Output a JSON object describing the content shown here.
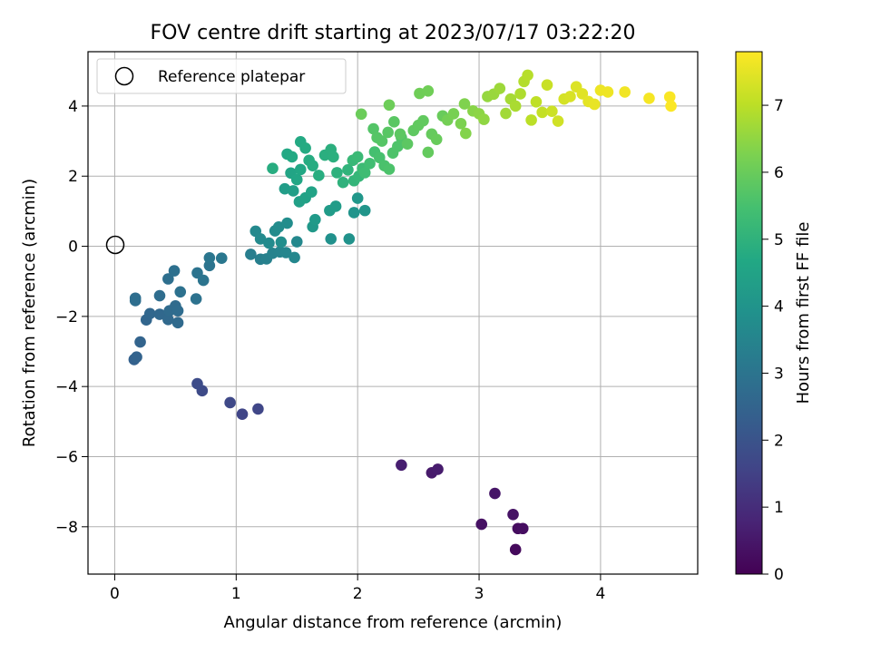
{
  "chart_data": {
    "type": "scatter",
    "title": "FOV centre drift starting at 2023/07/17 03:22:20",
    "xlabel": "Angular distance from reference (arcmin)",
    "ylabel": "Rotation from reference (arcmin)",
    "xlim": [
      -0.22,
      4.8
    ],
    "ylim": [
      -9.35,
      5.55
    ],
    "xticks": [
      0,
      1,
      2,
      3,
      4
    ],
    "yticks": [
      -8,
      -6,
      -4,
      -2,
      0,
      2,
      4
    ],
    "grid": true,
    "legend": {
      "placement": "upper-left",
      "entries": [
        "Reference platepar"
      ]
    },
    "reference_point": {
      "x": 0,
      "y": 0,
      "label": "Reference platepar"
    },
    "colorbar": {
      "label": "Hours from first FF file",
      "min": 0,
      "max": 7.8,
      "ticks": [
        0,
        1,
        2,
        3,
        4,
        5,
        6,
        7
      ],
      "colormap": "viridis"
    },
    "points": [
      {
        "x": 3.3,
        "y": -8.65,
        "c": 0.2
      },
      {
        "x": 3.32,
        "y": -8.05,
        "c": 0.25
      },
      {
        "x": 3.36,
        "y": -8.05,
        "c": 0.3
      },
      {
        "x": 3.02,
        "y": -7.93,
        "c": 0.35
      },
      {
        "x": 3.28,
        "y": -7.65,
        "c": 0.4
      },
      {
        "x": 3.13,
        "y": -7.05,
        "c": 0.45
      },
      {
        "x": 2.61,
        "y": -6.46,
        "c": 0.55
      },
      {
        "x": 2.66,
        "y": -6.36,
        "c": 0.6
      },
      {
        "x": 2.36,
        "y": -6.24,
        "c": 0.65
      },
      {
        "x": 1.05,
        "y": -4.79,
        "c": 1.6
      },
      {
        "x": 1.18,
        "y": -4.64,
        "c": 1.65
      },
      {
        "x": 0.95,
        "y": -4.46,
        "c": 1.7
      },
      {
        "x": 0.72,
        "y": -4.12,
        "c": 1.75
      },
      {
        "x": 0.68,
        "y": -3.92,
        "c": 1.8
      },
      {
        "x": 0.16,
        "y": -3.23,
        "c": 2.4
      },
      {
        "x": 0.18,
        "y": -3.16,
        "c": 2.45
      },
      {
        "x": 0.21,
        "y": -2.73,
        "c": 2.5
      },
      {
        "x": 0.26,
        "y": -2.1,
        "c": 2.55
      },
      {
        "x": 0.29,
        "y": -1.92,
        "c": 2.6
      },
      {
        "x": 0.37,
        "y": -1.94,
        "c": 2.62
      },
      {
        "x": 0.44,
        "y": -2.09,
        "c": 2.65
      },
      {
        "x": 0.52,
        "y": -2.18,
        "c": 2.68
      },
      {
        "x": 0.45,
        "y": -1.84,
        "c": 2.7
      },
      {
        "x": 0.5,
        "y": -1.7,
        "c": 2.72
      },
      {
        "x": 0.52,
        "y": -1.84,
        "c": 2.75
      },
      {
        "x": 0.37,
        "y": -1.41,
        "c": 2.78
      },
      {
        "x": 0.17,
        "y": -1.48,
        "c": 2.8
      },
      {
        "x": 0.17,
        "y": -1.55,
        "c": 2.82
      },
      {
        "x": 0.44,
        "y": -0.93,
        "c": 2.85
      },
      {
        "x": 0.49,
        "y": -0.7,
        "c": 2.88
      },
      {
        "x": 0.54,
        "y": -1.3,
        "c": 2.9
      },
      {
        "x": 0.67,
        "y": -1.5,
        "c": 2.92
      },
      {
        "x": 0.68,
        "y": -0.76,
        "c": 2.95
      },
      {
        "x": 0.73,
        "y": -0.97,
        "c": 2.98
      },
      {
        "x": 0.78,
        "y": -0.55,
        "c": 3.0
      },
      {
        "x": 0.78,
        "y": -0.33,
        "c": 3.05
      },
      {
        "x": 0.88,
        "y": -0.34,
        "c": 3.1
      },
      {
        "x": 1.12,
        "y": -0.23,
        "c": 3.3
      },
      {
        "x": 1.2,
        "y": -0.37,
        "c": 3.35
      },
      {
        "x": 1.25,
        "y": -0.36,
        "c": 3.4
      },
      {
        "x": 1.3,
        "y": -0.2,
        "c": 3.45
      },
      {
        "x": 1.36,
        "y": -0.16,
        "c": 3.5
      },
      {
        "x": 1.41,
        "y": -0.18,
        "c": 3.55
      },
      {
        "x": 1.48,
        "y": -0.32,
        "c": 3.6
      },
      {
        "x": 1.5,
        "y": 0.13,
        "c": 3.62
      },
      {
        "x": 1.16,
        "y": 0.43,
        "c": 3.65
      },
      {
        "x": 1.2,
        "y": 0.21,
        "c": 3.68
      },
      {
        "x": 1.27,
        "y": 0.09,
        "c": 3.7
      },
      {
        "x": 1.32,
        "y": 0.44,
        "c": 3.72
      },
      {
        "x": 1.35,
        "y": 0.55,
        "c": 3.75
      },
      {
        "x": 1.42,
        "y": 0.66,
        "c": 3.78
      },
      {
        "x": 1.37,
        "y": 0.12,
        "c": 3.8
      },
      {
        "x": 1.78,
        "y": 0.21,
        "c": 3.9
      },
      {
        "x": 1.93,
        "y": 0.21,
        "c": 3.95
      },
      {
        "x": 1.97,
        "y": 0.96,
        "c": 4.0
      },
      {
        "x": 2.06,
        "y": 1.02,
        "c": 4.05
      },
      {
        "x": 2.0,
        "y": 1.37,
        "c": 4.1
      },
      {
        "x": 1.63,
        "y": 0.56,
        "c": 4.15
      },
      {
        "x": 1.65,
        "y": 0.76,
        "c": 4.2
      },
      {
        "x": 1.77,
        "y": 1.02,
        "c": 4.25
      },
      {
        "x": 1.82,
        "y": 1.14,
        "c": 4.28
      },
      {
        "x": 1.4,
        "y": 1.64,
        "c": 4.3
      },
      {
        "x": 1.47,
        "y": 1.58,
        "c": 4.35
      },
      {
        "x": 1.52,
        "y": 1.27,
        "c": 4.4
      },
      {
        "x": 1.57,
        "y": 1.38,
        "c": 4.45
      },
      {
        "x": 1.62,
        "y": 1.55,
        "c": 4.5
      },
      {
        "x": 1.45,
        "y": 2.09,
        "c": 4.55
      },
      {
        "x": 1.5,
        "y": 1.9,
        "c": 4.6
      },
      {
        "x": 1.53,
        "y": 2.19,
        "c": 4.65
      },
      {
        "x": 1.42,
        "y": 2.63,
        "c": 4.68
      },
      {
        "x": 1.46,
        "y": 2.55,
        "c": 4.7
      },
      {
        "x": 1.53,
        "y": 2.98,
        "c": 4.72
      },
      {
        "x": 1.57,
        "y": 2.8,
        "c": 4.75
      },
      {
        "x": 1.6,
        "y": 2.45,
        "c": 4.78
      },
      {
        "x": 1.63,
        "y": 2.3,
        "c": 4.8
      },
      {
        "x": 1.3,
        "y": 2.22,
        "c": 4.82
      },
      {
        "x": 1.68,
        "y": 2.02,
        "c": 4.85
      },
      {
        "x": 1.73,
        "y": 2.6,
        "c": 4.88
      },
      {
        "x": 1.78,
        "y": 2.76,
        "c": 4.9
      },
      {
        "x": 1.8,
        "y": 2.55,
        "c": 4.92
      },
      {
        "x": 1.83,
        "y": 2.1,
        "c": 4.95
      },
      {
        "x": 1.88,
        "y": 1.82,
        "c": 5.0
      },
      {
        "x": 1.92,
        "y": 2.18,
        "c": 5.05
      },
      {
        "x": 1.97,
        "y": 1.87,
        "c": 5.1
      },
      {
        "x": 2.01,
        "y": 2.0,
        "c": 5.15
      },
      {
        "x": 1.96,
        "y": 2.45,
        "c": 5.2
      },
      {
        "x": 2.0,
        "y": 2.55,
        "c": 5.25
      },
      {
        "x": 2.04,
        "y": 2.22,
        "c": 5.3
      },
      {
        "x": 2.06,
        "y": 2.1,
        "c": 5.35
      },
      {
        "x": 2.1,
        "y": 2.36,
        "c": 5.4
      },
      {
        "x": 2.14,
        "y": 2.69,
        "c": 5.45
      },
      {
        "x": 2.18,
        "y": 2.53,
        "c": 5.5
      },
      {
        "x": 2.22,
        "y": 2.3,
        "c": 5.55
      },
      {
        "x": 2.26,
        "y": 2.2,
        "c": 5.58
      },
      {
        "x": 2.29,
        "y": 2.66,
        "c": 5.6
      },
      {
        "x": 2.33,
        "y": 2.85,
        "c": 5.62
      },
      {
        "x": 2.36,
        "y": 3.1,
        "c": 5.65
      },
      {
        "x": 2.13,
        "y": 3.35,
        "c": 5.68
      },
      {
        "x": 2.16,
        "y": 3.1,
        "c": 5.7
      },
      {
        "x": 2.2,
        "y": 3.0,
        "c": 5.72
      },
      {
        "x": 2.25,
        "y": 3.25,
        "c": 5.75
      },
      {
        "x": 2.3,
        "y": 3.55,
        "c": 5.78
      },
      {
        "x": 2.35,
        "y": 3.2,
        "c": 5.8
      },
      {
        "x": 2.41,
        "y": 2.92,
        "c": 5.82
      },
      {
        "x": 2.46,
        "y": 3.3,
        "c": 5.85
      },
      {
        "x": 2.5,
        "y": 3.45,
        "c": 5.88
      },
      {
        "x": 2.54,
        "y": 3.58,
        "c": 5.9
      },
      {
        "x": 2.58,
        "y": 2.68,
        "c": 5.92
      },
      {
        "x": 2.61,
        "y": 3.2,
        "c": 5.95
      },
      {
        "x": 2.65,
        "y": 3.05,
        "c": 5.98
      },
      {
        "x": 2.7,
        "y": 3.72,
        "c": 6.0
      },
      {
        "x": 2.03,
        "y": 3.77,
        "c": 6.02
      },
      {
        "x": 2.26,
        "y": 4.03,
        "c": 6.05
      },
      {
        "x": 2.51,
        "y": 4.36,
        "c": 6.08
      },
      {
        "x": 2.58,
        "y": 4.43,
        "c": 6.1
      },
      {
        "x": 2.74,
        "y": 3.6,
        "c": 6.15
      },
      {
        "x": 2.79,
        "y": 3.78,
        "c": 6.2
      },
      {
        "x": 2.85,
        "y": 3.5,
        "c": 6.25
      },
      {
        "x": 2.88,
        "y": 4.06,
        "c": 6.3
      },
      {
        "x": 2.89,
        "y": 3.22,
        "c": 6.35
      },
      {
        "x": 2.95,
        "y": 3.86,
        "c": 6.4
      },
      {
        "x": 3.0,
        "y": 3.78,
        "c": 6.45
      },
      {
        "x": 3.04,
        "y": 3.62,
        "c": 6.5
      },
      {
        "x": 3.07,
        "y": 4.27,
        "c": 6.55
      },
      {
        "x": 3.12,
        "y": 4.34,
        "c": 6.6
      },
      {
        "x": 3.17,
        "y": 4.5,
        "c": 6.65
      },
      {
        "x": 3.22,
        "y": 3.79,
        "c": 6.7
      },
      {
        "x": 3.26,
        "y": 4.2,
        "c": 6.75
      },
      {
        "x": 3.3,
        "y": 4.0,
        "c": 6.8
      },
      {
        "x": 3.34,
        "y": 4.35,
        "c": 6.85
      },
      {
        "x": 3.37,
        "y": 4.7,
        "c": 6.9
      },
      {
        "x": 3.4,
        "y": 4.88,
        "c": 6.95
      },
      {
        "x": 3.43,
        "y": 3.6,
        "c": 7.0
      },
      {
        "x": 3.47,
        "y": 4.12,
        "c": 7.05
      },
      {
        "x": 3.52,
        "y": 3.82,
        "c": 7.1
      },
      {
        "x": 3.56,
        "y": 4.6,
        "c": 7.15
      },
      {
        "x": 3.6,
        "y": 3.85,
        "c": 7.2
      },
      {
        "x": 3.65,
        "y": 3.57,
        "c": 7.25
      },
      {
        "x": 3.7,
        "y": 4.2,
        "c": 7.3
      },
      {
        "x": 3.75,
        "y": 4.27,
        "c": 7.35
      },
      {
        "x": 3.8,
        "y": 4.55,
        "c": 7.4
      },
      {
        "x": 3.85,
        "y": 4.35,
        "c": 7.45
      },
      {
        "x": 3.9,
        "y": 4.13,
        "c": 7.5
      },
      {
        "x": 3.95,
        "y": 4.05,
        "c": 7.55
      },
      {
        "x": 4.0,
        "y": 4.45,
        "c": 7.6
      },
      {
        "x": 4.06,
        "y": 4.4,
        "c": 7.62
      },
      {
        "x": 4.2,
        "y": 4.4,
        "c": 7.65
      },
      {
        "x": 4.4,
        "y": 4.22,
        "c": 7.7
      },
      {
        "x": 4.57,
        "y": 4.26,
        "c": 7.75
      },
      {
        "x": 4.58,
        "y": 4.0,
        "c": 7.78
      }
    ]
  }
}
